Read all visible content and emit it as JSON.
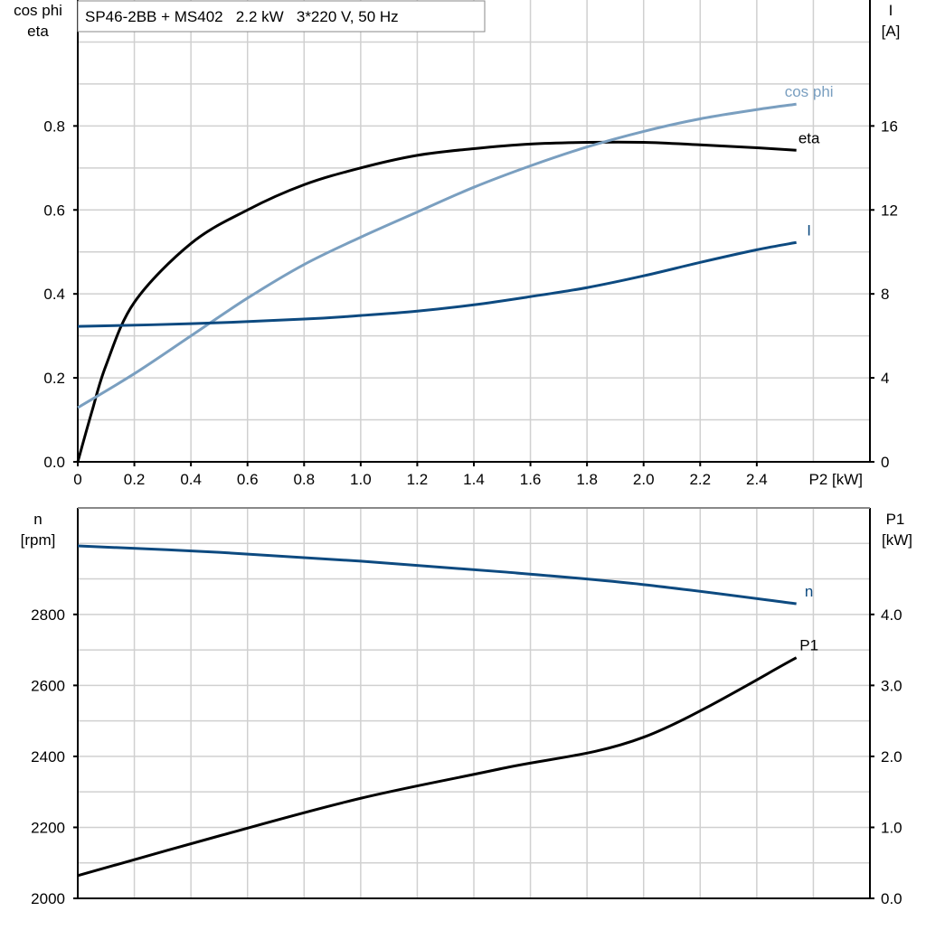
{
  "chart_data": [
    {
      "type": "line",
      "title": "SP46-2BB + MS402   2.2 kW   3*220 V, 50 Hz",
      "xlabel": "P2 [kW]",
      "ylabel_left": [
        "cos phi",
        "eta"
      ],
      "ylabel_right": [
        "I",
        "[A]"
      ],
      "xlim": [
        0,
        2.8
      ],
      "ylim_left": [
        0,
        1.1
      ],
      "ylim_right": [
        0,
        22
      ],
      "x_ticks": [
        "0",
        "0.2",
        "0.4",
        "0.6",
        "0.8",
        "1.0",
        "1.2",
        "1.4",
        "1.6",
        "1.8",
        "2.0",
        "2.2",
        "2.4"
      ],
      "y_left_ticks": [
        "0.0",
        "0.2",
        "0.4",
        "0.6",
        "0.8"
      ],
      "y_right_ticks": [
        "0",
        "4",
        "8",
        "12",
        "16"
      ],
      "grid": true,
      "series": [
        {
          "name": "eta",
          "axis": "left",
          "color": "#000000",
          "x": [
            0,
            0.05,
            0.1,
            0.2,
            0.4,
            0.6,
            0.8,
            1.0,
            1.2,
            1.4,
            1.6,
            1.8,
            2.0,
            2.2,
            2.4,
            2.54
          ],
          "y": [
            0,
            0.12,
            0.23,
            0.38,
            0.52,
            0.6,
            0.66,
            0.7,
            0.73,
            0.746,
            0.757,
            0.761,
            0.761,
            0.755,
            0.748,
            0.742
          ]
        },
        {
          "name": "cos phi",
          "axis": "left",
          "color": "#7a9fc0",
          "x": [
            0,
            0.2,
            0.4,
            0.6,
            0.8,
            1.0,
            1.2,
            1.4,
            1.6,
            1.8,
            2.0,
            2.2,
            2.4,
            2.54
          ],
          "y": [
            0.129,
            0.21,
            0.3,
            0.39,
            0.47,
            0.535,
            0.595,
            0.654,
            0.705,
            0.75,
            0.787,
            0.817,
            0.839,
            0.852
          ]
        },
        {
          "name": "I",
          "axis": "right",
          "color": "#0d4a80",
          "x": [
            0,
            0.4,
            0.8,
            1.0,
            1.2,
            1.4,
            1.6,
            1.8,
            2.0,
            2.2,
            2.4,
            2.54
          ],
          "y": [
            6.45,
            6.58,
            6.8,
            6.97,
            7.18,
            7.48,
            7.87,
            8.3,
            8.86,
            9.5,
            10.1,
            10.45
          ]
        }
      ]
    },
    {
      "type": "line",
      "ylabel_left": [
        "n",
        "[rpm]"
      ],
      "ylabel_right": [
        "P1",
        "[kW]"
      ],
      "xlim": [
        0,
        2.8
      ],
      "ylim_left": [
        2000,
        3100
      ],
      "ylim_right": [
        0,
        5.5
      ],
      "y_left_ticks": [
        "2000",
        "2200",
        "2400",
        "2600",
        "2800"
      ],
      "y_right_ticks": [
        "0.0",
        "1.0",
        "2.0",
        "3.0",
        "4.0"
      ],
      "grid": true,
      "series": [
        {
          "name": "n",
          "axis": "left",
          "color": "#0d4a80",
          "x": [
            0,
            0.5,
            1.0,
            1.5,
            2.0,
            2.54
          ],
          "y": [
            2993,
            2975,
            2950,
            2920,
            2884,
            2830
          ]
        },
        {
          "name": "P1",
          "axis": "right",
          "color": "#000000",
          "x": [
            0,
            0.5,
            1.0,
            1.5,
            2.0,
            2.54
          ],
          "y": [
            0.32,
            0.88,
            1.41,
            1.83,
            2.27,
            3.39
          ]
        }
      ]
    }
  ]
}
